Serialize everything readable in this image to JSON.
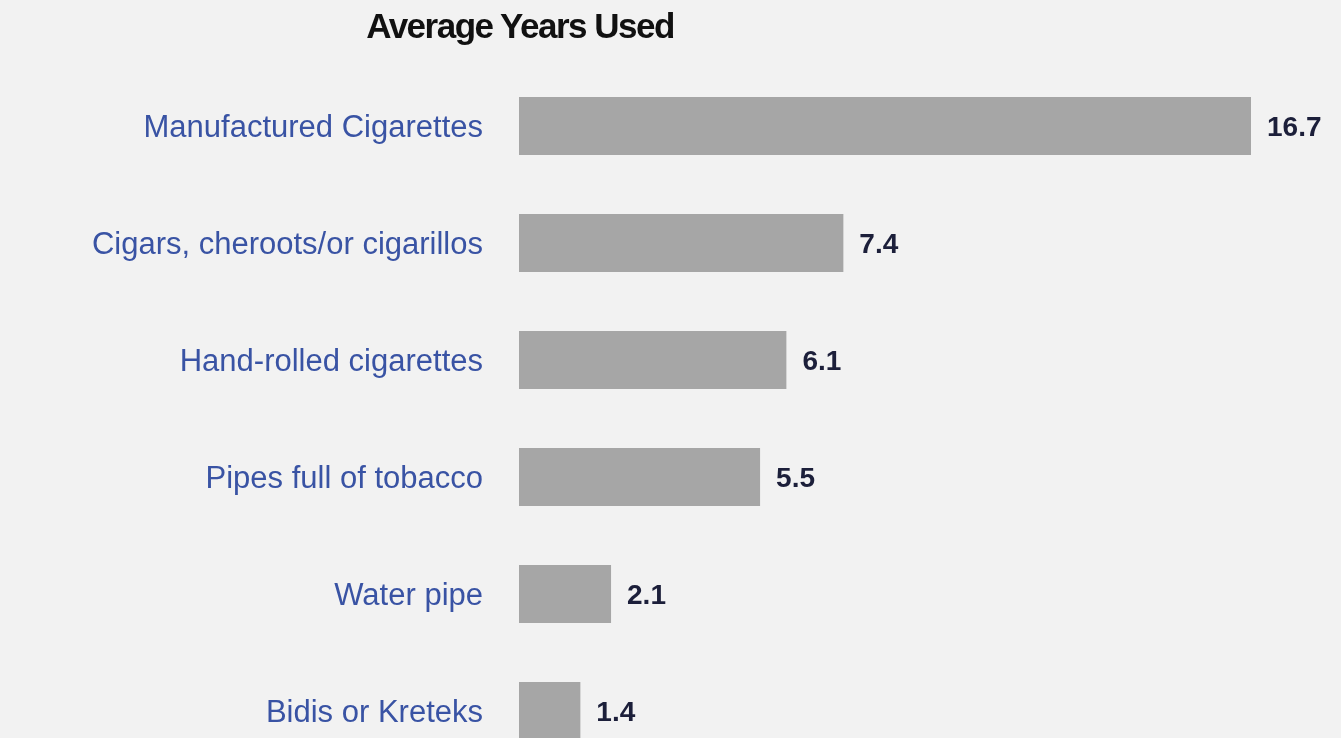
{
  "chart_data": {
    "type": "bar",
    "title": "Average Years Used",
    "orientation": "horizontal",
    "categories": [
      "Manufactured Cigarettes",
      "Cigars, cheroots/or cigarillos",
      "Hand-rolled cigarettes",
      "Pipes full of tobacco",
      "Water pipe",
      "Bidis or Kreteks"
    ],
    "values": [
      16.7,
      7.4,
      6.1,
      5.5,
      2.1,
      1.4
    ],
    "color": "#a6a6a6",
    "data_labels": true
  }
}
